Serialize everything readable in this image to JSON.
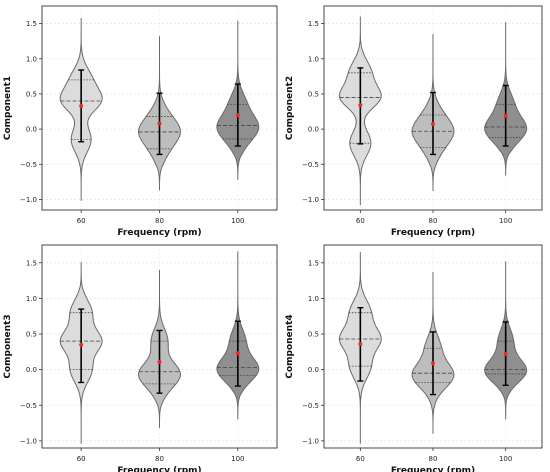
{
  "chart_data": [
    {
      "type": "violin",
      "xlabel": "Frequency (rpm)",
      "ylabel": "Component1",
      "categories": [
        "60",
        "80",
        "100"
      ],
      "yticks": [
        "−1.0",
        "−0.5",
        "0.0",
        "0.5",
        "1.0",
        "1.5"
      ],
      "ytick_values": [
        -1.0,
        -0.5,
        0.0,
        0.5,
        1.0,
        1.5
      ],
      "ylim": [
        -1.15,
        1.75
      ],
      "grid": "y",
      "fill_colors": [
        "#dcdcdc",
        "#bdbdbd",
        "#8f8f8f"
      ],
      "mean_color": "#e03030",
      "series": [
        {
          "category": "60",
          "min": -1.02,
          "max": 1.58,
          "q1": -0.15,
          "median": 0.4,
          "q3": 0.7,
          "mean": 0.33,
          "whisker_low": -0.18,
          "whisker_high": 0.84
        },
        {
          "category": "80",
          "min": -0.87,
          "max": 1.32,
          "q1": -0.28,
          "median": -0.04,
          "q3": 0.18,
          "mean": 0.08,
          "whisker_low": -0.36,
          "whisker_high": 0.51
        },
        {
          "category": "100",
          "min": -0.72,
          "max": 1.54,
          "q1": -0.14,
          "median": 0.05,
          "q3": 0.35,
          "mean": 0.2,
          "whisker_low": -0.24,
          "whisker_high": 0.64
        }
      ]
    },
    {
      "type": "violin",
      "xlabel": "Frequency (rpm)",
      "ylabel": "Component2",
      "categories": [
        "60",
        "80",
        "100"
      ],
      "yticks": [
        "−1.0",
        "−0.5",
        "0.0",
        "0.5",
        "1.0",
        "1.5"
      ],
      "ytick_values": [
        -1.0,
        -0.5,
        0.0,
        0.5,
        1.0,
        1.5
      ],
      "ylim": [
        -1.15,
        1.75
      ],
      "grid": "y",
      "fill_colors": [
        "#dcdcdc",
        "#bdbdbd",
        "#8f8f8f"
      ],
      "mean_color": "#e03030",
      "series": [
        {
          "category": "60",
          "min": -1.08,
          "max": 1.6,
          "q1": -0.2,
          "median": 0.45,
          "q3": 0.8,
          "mean": 0.34,
          "whisker_low": -0.21,
          "whisker_high": 0.87
        },
        {
          "category": "80",
          "min": -0.88,
          "max": 1.35,
          "q1": -0.26,
          "median": -0.03,
          "q3": 0.2,
          "mean": 0.07,
          "whisker_low": -0.36,
          "whisker_high": 0.52
        },
        {
          "category": "100",
          "min": -0.66,
          "max": 1.52,
          "q1": -0.12,
          "median": 0.03,
          "q3": 0.35,
          "mean": 0.19,
          "whisker_low": -0.24,
          "whisker_high": 0.62
        }
      ]
    },
    {
      "type": "violin",
      "xlabel": "Frequency (rpm)",
      "ylabel": "Component3",
      "categories": [
        "60",
        "80",
        "100"
      ],
      "yticks": [
        "−1.0",
        "−0.5",
        "0.0",
        "0.5",
        "1.0",
        "1.5"
      ],
      "ytick_values": [
        -1.0,
        -0.5,
        0.0,
        0.5,
        1.0,
        1.5
      ],
      "ylim": [
        -1.1,
        1.75
      ],
      "grid": "y",
      "fill_colors": [
        "#dcdcdc",
        "#bdbdbd",
        "#8f8f8f"
      ],
      "mean_color": "#e03030",
      "series": [
        {
          "category": "60",
          "min": -1.04,
          "max": 1.51,
          "q1": 0.0,
          "median": 0.4,
          "q3": 0.8,
          "mean": 0.35,
          "whisker_low": -0.18,
          "whisker_high": 0.85
        },
        {
          "category": "80",
          "min": -0.82,
          "max": 1.4,
          "q1": -0.2,
          "median": -0.03,
          "q3": 0.4,
          "mean": 0.11,
          "whisker_low": -0.33,
          "whisker_high": 0.55
        },
        {
          "category": "100",
          "min": -0.7,
          "max": 1.66,
          "q1": -0.08,
          "median": 0.03,
          "q3": 0.4,
          "mean": 0.23,
          "whisker_low": -0.23,
          "whisker_high": 0.68
        }
      ]
    },
    {
      "type": "violin",
      "xlabel": "Frequency (rpm)",
      "ylabel": "Component4",
      "categories": [
        "60",
        "80",
        "100"
      ],
      "yticks": [
        "−1.0",
        "−0.5",
        "0.0",
        "0.5",
        "1.0",
        "1.5"
      ],
      "ytick_values": [
        -1.0,
        -0.5,
        0.0,
        0.5,
        1.0,
        1.5
      ],
      "ylim": [
        -1.1,
        1.75
      ],
      "grid": "y",
      "fill_colors": [
        "#dcdcdc",
        "#bdbdbd",
        "#8f8f8f"
      ],
      "mean_color": "#e03030",
      "series": [
        {
          "category": "60",
          "min": -1.04,
          "max": 1.65,
          "q1": 0.05,
          "median": 0.43,
          "q3": 0.8,
          "mean": 0.36,
          "whisker_low": -0.16,
          "whisker_high": 0.87
        },
        {
          "category": "80",
          "min": -0.9,
          "max": 1.37,
          "q1": -0.18,
          "median": -0.05,
          "q3": 0.3,
          "mean": 0.09,
          "whisker_low": -0.35,
          "whisker_high": 0.53
        },
        {
          "category": "100",
          "min": -0.7,
          "max": 1.52,
          "q1": -0.06,
          "median": 0.0,
          "q3": 0.4,
          "mean": 0.22,
          "whisker_low": -0.22,
          "whisker_high": 0.67
        }
      ]
    }
  ]
}
